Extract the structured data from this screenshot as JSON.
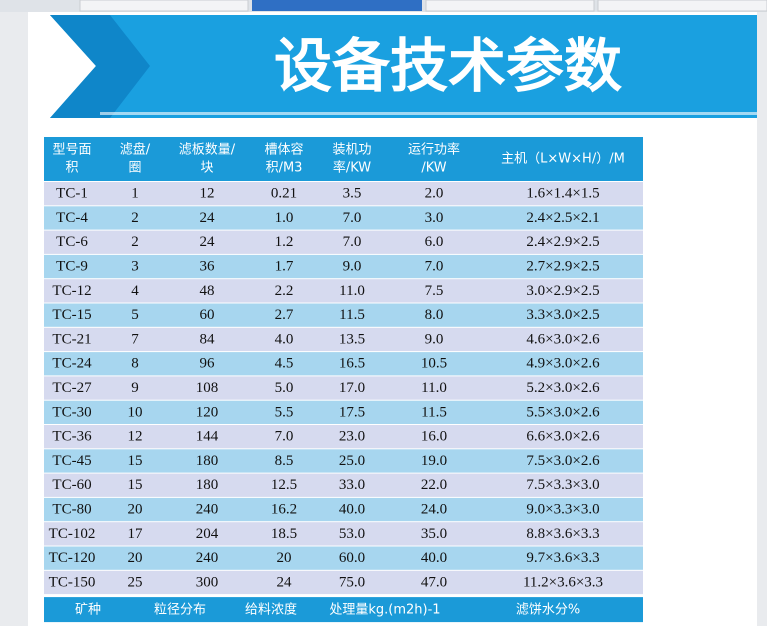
{
  "banner_title": "设备技术参数",
  "table": {
    "header": [
      [
        "型号面",
        "积"
      ],
      [
        "滤盘/",
        "圈"
      ],
      [
        "滤板数量/",
        "块"
      ],
      [
        "槽体容",
        "积/M3"
      ],
      [
        "装机功",
        "率/KW"
      ],
      [
        "运行功率",
        "/KW"
      ],
      [
        "主机（L×W×H/）/M"
      ]
    ],
    "rows": [
      [
        "TC-1",
        "1",
        "12",
        "0.21",
        "3.5",
        "2.0",
        "1.6×1.4×1.5"
      ],
      [
        "TC-4",
        "2",
        "24",
        "1.0",
        "7.0",
        "3.0",
        "2.4×2.5×2.1"
      ],
      [
        "TC-6",
        "2",
        "24",
        "1.2",
        "7.0",
        "6.0",
        "2.4×2.9×2.5"
      ],
      [
        "TC-9",
        "3",
        "36",
        "1.7",
        "9.0",
        "7.0",
        "2.7×2.9×2.5"
      ],
      [
        "TC-12",
        "4",
        "48",
        "2.2",
        "11.0",
        "7.5",
        "3.0×2.9×2.5"
      ],
      [
        "TC-15",
        "5",
        "60",
        "2.7",
        "11.5",
        "8.0",
        "3.3×3.0×2.5"
      ],
      [
        "TC-21",
        "7",
        "84",
        "4.0",
        "13.5",
        "9.0",
        "4.6×3.0×2.6"
      ],
      [
        "TC-24",
        "8",
        "96",
        "4.5",
        "16.5",
        "10.5",
        "4.9×3.0×2.6"
      ],
      [
        "TC-27",
        "9",
        "108",
        "5.0",
        "17.0",
        "11.0",
        "5.2×3.0×2.6"
      ],
      [
        "TC-30",
        "10",
        "120",
        "5.5",
        "17.5",
        "11.5",
        "5.5×3.0×2.6"
      ],
      [
        "TC-36",
        "12",
        "144",
        "7.0",
        "23.0",
        "16.0",
        "6.6×3.0×2.6"
      ],
      [
        "TC-45",
        "15",
        "180",
        "8.5",
        "25.0",
        "19.0",
        "7.5×3.0×2.6"
      ],
      [
        "TC-60",
        "15",
        "180",
        "12.5",
        "33.0",
        "22.0",
        "7.5×3.3×3.0"
      ],
      [
        "TC-80",
        "20",
        "240",
        "16.2",
        "40.0",
        "24.0",
        "9.0×3.3×3.0"
      ],
      [
        "TC-102",
        "17",
        "204",
        "18.5",
        "53.0",
        "35.0",
        "8.8×3.6×3.3"
      ],
      [
        "TC-120",
        "20",
        "240",
        "20",
        "60.0",
        "40.0",
        "9.7×3.6×3.3"
      ],
      [
        "TC-150",
        "25",
        "300",
        "24",
        "75.0",
        "47.0",
        "11.2×3.6×3.3"
      ]
    ],
    "footer": [
      "矿种",
      "粒径分布",
      "给料浓度",
      "处理量kg.(m2h)-1",
      "滤饼水分%"
    ]
  }
}
